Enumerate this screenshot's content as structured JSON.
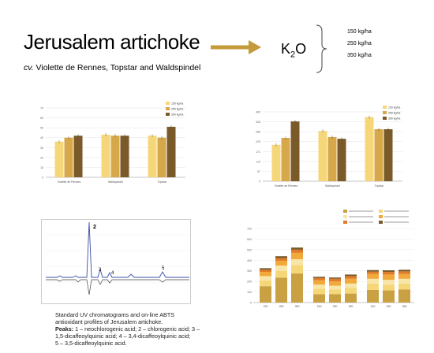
{
  "header": {
    "title": "Jerusalem artichoke",
    "subtitle_cv": "cv.",
    "subtitle_rest": " Violette de Rennes, Topstar and Waldspindel",
    "k2o": {
      "k": "K",
      "sub": "2",
      "o": "O"
    },
    "rates": [
      "150 kg/ha",
      "250 kg/ha",
      "350 kg/ha"
    ]
  },
  "colors": {
    "arrow": "#c49a3a",
    "bar1": "#f5d77a",
    "bar2": "#d6a84a",
    "bar3": "#7a5a28",
    "uv_line": "#3b4fa8"
  },
  "caption": {
    "line1": "Standard UV chromatograms and on-line ABTS",
    "line2": "antioxidant profiles of Jerusalem artichoke.",
    "peaks_label": "Peaks:",
    "line3": " 1 – neochlorogenic acid; 2 – chlorogenic acid; 3 –",
    "line4": "1,5-dicaffeoylquinic acid; 4 – 3,4-dicaffeoylquinic acid;",
    "line5": "5 – 3,5-dicaffeoylquinic acid."
  },
  "chromatogram": {
    "peak_labels": [
      "2",
      "3",
      "4",
      "5"
    ]
  },
  "chart_data": [
    {
      "type": "bar",
      "categories": [
        "Violette de Rennes",
        "Waldspindel",
        "Topstar"
      ],
      "series": [
        {
          "name": "150 kg/ha",
          "values": [
            36,
            43,
            42
          ]
        },
        {
          "name": "250 kg/ha",
          "values": [
            40,
            42,
            40
          ]
        },
        {
          "name": "350 kg/ha",
          "values": [
            42,
            42,
            51
          ]
        }
      ],
      "ylim": [
        0,
        70
      ]
    },
    {
      "type": "bar",
      "categories": [
        "Violette de Rennes",
        "Waldspindel",
        "Topstar"
      ],
      "series": [
        {
          "name": "150 kg/ha",
          "values": [
            210,
            290,
            370
          ]
        },
        {
          "name": "250 kg/ha",
          "values": [
            250,
            255,
            300
          ]
        },
        {
          "name": "350 kg/ha",
          "values": [
            345,
            245,
            300
          ]
        }
      ],
      "ylim": [
        0,
        400
      ]
    },
    {
      "type": "bar",
      "categories": [
        "150",
        "250",
        "350",
        "150",
        "250",
        "350",
        "150",
        "250",
        "350"
      ],
      "series": [
        {
          "name": "1",
          "values": [
            155,
            235,
            275,
            80,
            80,
            85,
            120,
            115,
            125
          ]
        },
        {
          "name": "2",
          "values": [
            55,
            65,
            80,
            50,
            45,
            55,
            60,
            55,
            55
          ]
        },
        {
          "name": "3",
          "values": [
            40,
            50,
            55,
            40,
            35,
            40,
            45,
            45,
            45
          ]
        },
        {
          "name": "4",
          "values": [
            40,
            45,
            60,
            40,
            40,
            45,
            45,
            50,
            45
          ]
        },
        {
          "name": "5",
          "values": [
            20,
            25,
            30,
            22,
            25,
            25,
            22,
            25,
            25
          ]
        },
        {
          "name": "6",
          "values": [
            15,
            18,
            20,
            12,
            12,
            15,
            15,
            15,
            15
          ]
        }
      ],
      "ylim": [
        0,
        700
      ]
    }
  ]
}
